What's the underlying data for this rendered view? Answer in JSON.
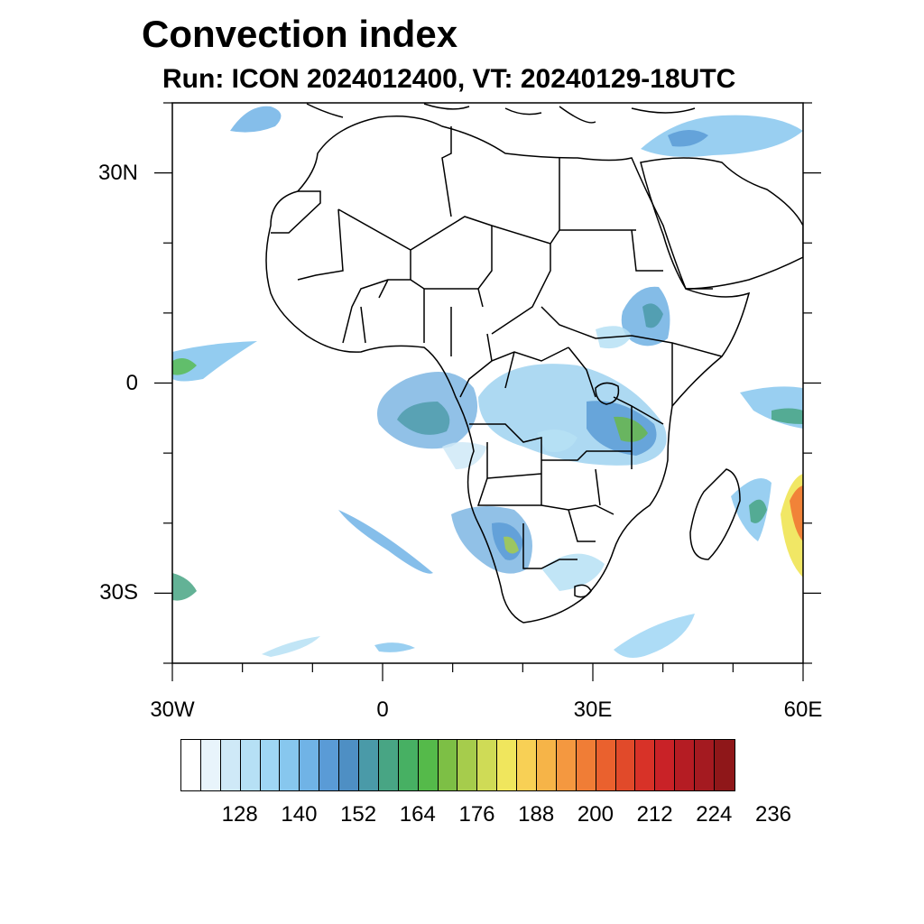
{
  "header": {
    "title": "Convection index",
    "subtitle": "Run: ICON 2024012400,  VT: 20240129-18UTC"
  },
  "map": {
    "lon_range": [
      -30,
      60
    ],
    "lat_range": [
      -40,
      40
    ],
    "x_ticks": [
      {
        "label": "30W",
        "lon": -30
      },
      {
        "label": "0",
        "lon": 0
      },
      {
        "label": "30E",
        "lon": 30
      },
      {
        "label": "60E",
        "lon": 60
      }
    ],
    "y_ticks": [
      {
        "label": "30N",
        "lat": 30
      },
      {
        "label": "0",
        "lat": 0
      },
      {
        "label": "30S",
        "lat": -30
      }
    ]
  },
  "colorbar": {
    "colors": [
      "#ffffff",
      "#e8f4fb",
      "#cfe9f7",
      "#b6e0f5",
      "#9fd6f4",
      "#87c7ee",
      "#70b3e6",
      "#5a9bd6",
      "#4e8fc4",
      "#4a9aa8",
      "#48a584",
      "#47b063",
      "#55ba4a",
      "#7dbf45",
      "#a6cc4c",
      "#cfdb56",
      "#f0e65d",
      "#f8d055",
      "#f6b448",
      "#f49840",
      "#f07d36",
      "#ea612e",
      "#e14a2a",
      "#d83228",
      "#c92227",
      "#b51c23",
      "#a41a20",
      "#8f1719"
    ],
    "labels": [
      "128",
      "140",
      "152",
      "164",
      "176",
      "188",
      "200",
      "212",
      "224",
      "236"
    ]
  }
}
